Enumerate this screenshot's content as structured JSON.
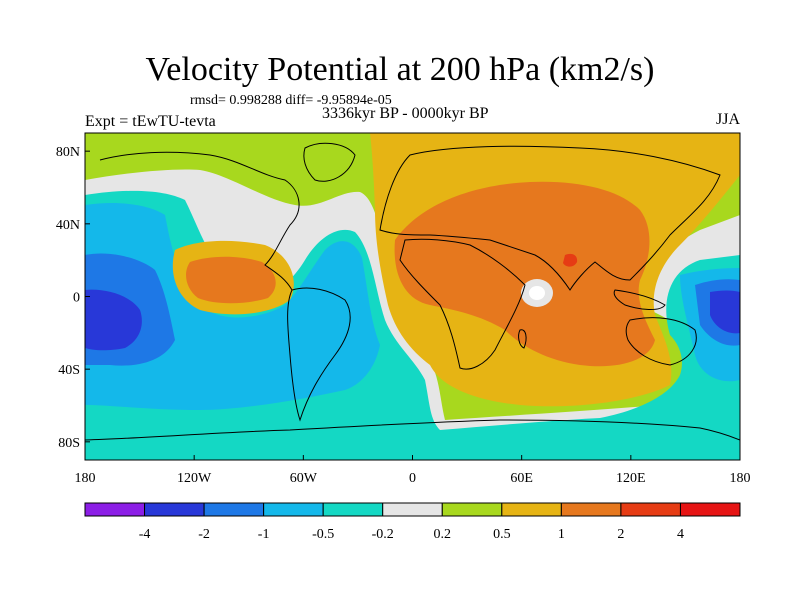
{
  "title": "Velocity Potential at 200 hPa (km2/s)",
  "stats": "rmsd= 0.998288 diff= -9.95894e-05",
  "left_label": "Expt = tEwTU-tevta",
  "center_label": "3336kyr BP - 0000kyr BP",
  "right_label": "JJA",
  "lat_ticks": [
    "80N",
    "40N",
    "0",
    "40S",
    "80S"
  ],
  "lon_ticks": [
    "180",
    "120W",
    "60W",
    "0",
    "60E",
    "120E",
    "180"
  ],
  "colorbar": {
    "levels": [
      "-4",
      "-2",
      "-1",
      "-0.5",
      "-0.2",
      "0.2",
      "0.5",
      "1",
      "2",
      "4"
    ],
    "colors": [
      "#8c1ee6",
      "#2838d8",
      "#1e78e6",
      "#14b8ea",
      "#14d8c4",
      "#e6e6e6",
      "#a8d81e",
      "#e6b414",
      "#e6781e",
      "#e63c14",
      "#e61414"
    ]
  }
}
